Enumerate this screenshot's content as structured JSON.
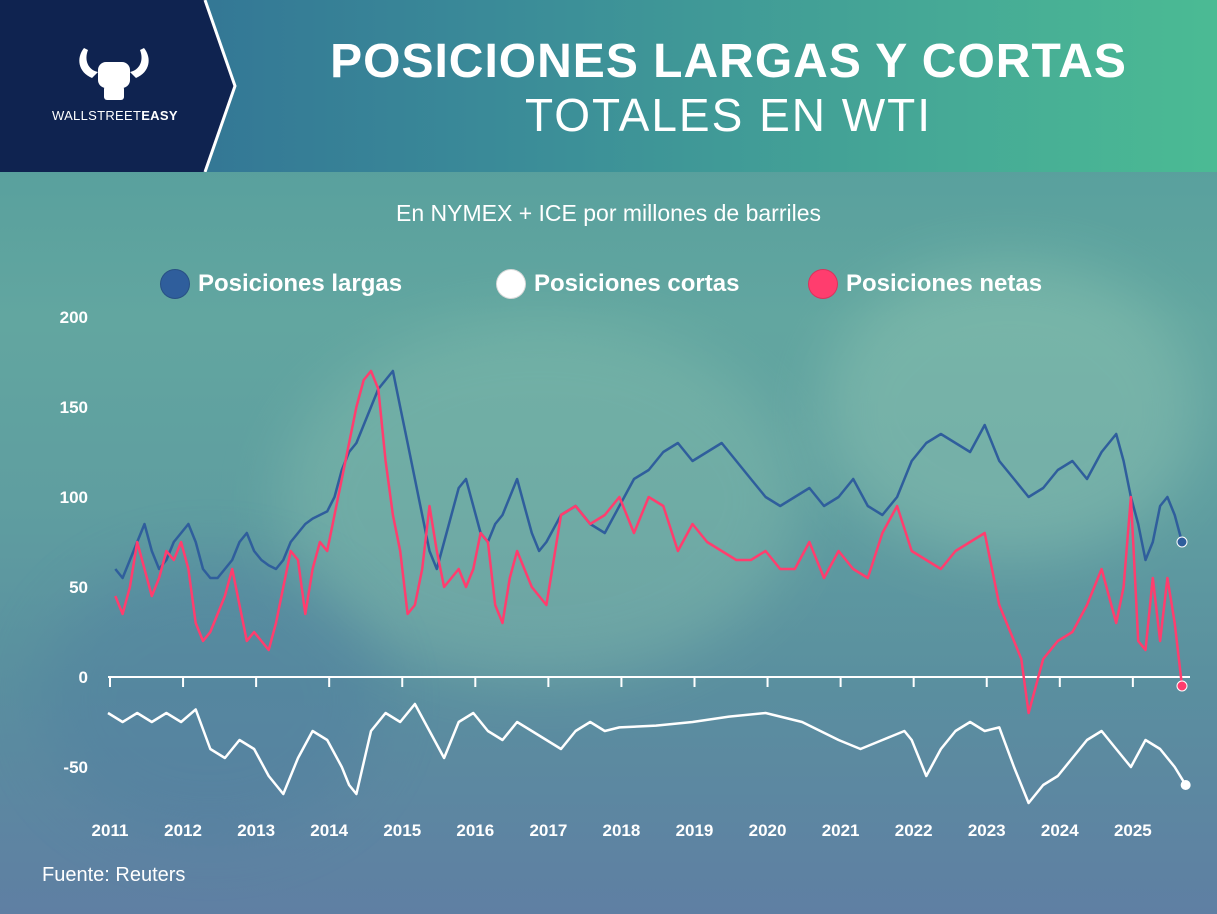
{
  "brand": {
    "name_regular": "WALLSTREET",
    "name_bold": "EASY"
  },
  "title_line1": "POSICIONES LARGAS Y CORTAS",
  "title_line2": "TOTALES EN WTI",
  "subtitle": "En NYMEX + ICE por millones de barriles",
  "source": "Fuente: Reuters",
  "colors": {
    "long": "#2f5e9c",
    "short": "#ffffff",
    "net": "#ff3d6e"
  },
  "chart_data": {
    "type": "line",
    "title": "POSICIONES LARGAS Y CORTAS TOTALES EN WTI",
    "subtitle": "En NYMEX + ICE por millones de barriles",
    "x_ticks": [
      "2011",
      "2012",
      "2013",
      "2014",
      "2015",
      "2016",
      "2017",
      "2018",
      "2019",
      "2020",
      "2021",
      "2022",
      "2023",
      "2024",
      "2025"
    ],
    "y_ticks": [
      200,
      150,
      100,
      50,
      0,
      -50
    ],
    "ylim": [
      -70,
      200
    ],
    "xlim": [
      2011.0,
      2025.8
    ],
    "legend_position": "top",
    "grid": false,
    "series": [
      {
        "name": "Posiciones largas",
        "color": "#2f5e9c",
        "x": [
          2011.1,
          2011.2,
          2011.3,
          2011.4,
          2011.5,
          2011.6,
          2011.7,
          2011.8,
          2011.9,
          2012.0,
          2012.1,
          2012.2,
          2012.3,
          2012.4,
          2012.5,
          2012.6,
          2012.7,
          2012.8,
          2012.9,
          2013.0,
          2013.1,
          2013.2,
          2013.3,
          2013.4,
          2013.5,
          2013.6,
          2013.7,
          2013.8,
          2013.9,
          2014.0,
          2014.1,
          2014.2,
          2014.3,
          2014.4,
          2014.5,
          2014.6,
          2014.7,
          2014.8,
          2014.9,
          2015.0,
          2015.1,
          2015.2,
          2015.3,
          2015.4,
          2015.5,
          2015.6,
          2015.7,
          2015.8,
          2015.9,
          2016.0,
          2016.1,
          2016.2,
          2016.3,
          2016.4,
          2016.5,
          2016.6,
          2016.7,
          2016.8,
          2016.9,
          2017.0,
          2017.2,
          2017.4,
          2017.6,
          2017.8,
          2018.0,
          2018.2,
          2018.4,
          2018.6,
          2018.8,
          2019.0,
          2019.2,
          2019.4,
          2019.6,
          2019.8,
          2020.0,
          2020.2,
          2020.4,
          2020.6,
          2020.8,
          2021.0,
          2021.2,
          2021.4,
          2021.6,
          2021.8,
          2022.0,
          2022.2,
          2022.4,
          2022.6,
          2022.8,
          2023.0,
          2023.2,
          2023.4,
          2023.6,
          2023.8,
          2024.0,
          2024.2,
          2024.4,
          2024.6,
          2024.8,
          2024.9,
          2025.0,
          2025.1,
          2025.2,
          2025.3,
          2025.4,
          2025.5,
          2025.6,
          2025.7
        ],
        "values": [
          60,
          55,
          65,
          75,
          85,
          70,
          60,
          65,
          75,
          80,
          85,
          75,
          60,
          55,
          55,
          60,
          65,
          75,
          80,
          70,
          65,
          62,
          60,
          65,
          75,
          80,
          85,
          88,
          90,
          92,
          100,
          115,
          125,
          130,
          140,
          150,
          160,
          165,
          170,
          150,
          130,
          110,
          90,
          70,
          60,
          75,
          90,
          105,
          110,
          95,
          80,
          75,
          85,
          90,
          100,
          110,
          95,
          80,
          70,
          75,
          90,
          95,
          85,
          80,
          95,
          110,
          115,
          125,
          130,
          120,
          125,
          130,
          120,
          110,
          100,
          95,
          100,
          105,
          95,
          100,
          110,
          95,
          90,
          100,
          120,
          130,
          135,
          130,
          125,
          140,
          120,
          110,
          100,
          105,
          115,
          120,
          110,
          125,
          135,
          120,
          100,
          85,
          65,
          75,
          95,
          100,
          90,
          75
        ]
      },
      {
        "name": "Posiciones cortas",
        "color": "#ffffff",
        "x": [
          2011.0,
          2011.2,
          2011.4,
          2011.6,
          2011.8,
          2012.0,
          2012.2,
          2012.4,
          2012.6,
          2012.8,
          2013.0,
          2013.2,
          2013.4,
          2013.6,
          2013.8,
          2014.0,
          2014.2,
          2014.3,
          2014.4,
          2014.6,
          2014.8,
          2015.0,
          2015.2,
          2015.4,
          2015.6,
          2015.8,
          2016.0,
          2016.2,
          2016.4,
          2016.6,
          2016.8,
          2017.0,
          2017.2,
          2017.4,
          2017.6,
          2017.8,
          2018.0,
          2018.5,
          2019.0,
          2019.5,
          2020.0,
          2020.5,
          2021.0,
          2021.3,
          2021.6,
          2021.9,
          2022.0,
          2022.2,
          2022.4,
          2022.6,
          2022.8,
          2023.0,
          2023.2,
          2023.4,
          2023.6,
          2023.8,
          2024.0,
          2024.2,
          2024.4,
          2024.6,
          2024.8,
          2025.0,
          2025.2,
          2025.4,
          2025.6,
          2025.75
        ],
        "values": [
          -20,
          -25,
          -20,
          -25,
          -20,
          -25,
          -18,
          -40,
          -45,
          -35,
          -40,
          -55,
          -65,
          -45,
          -30,
          -35,
          -50,
          -60,
          -65,
          -30,
          -20,
          -25,
          -15,
          -30,
          -45,
          -25,
          -20,
          -30,
          -35,
          -25,
          -30,
          -35,
          -40,
          -30,
          -25,
          -30,
          -28,
          -27,
          -25,
          -22,
          -20,
          -25,
          -35,
          -40,
          -35,
          -30,
          -35,
          -55,
          -40,
          -30,
          -25,
          -30,
          -28,
          -50,
          -70,
          -60,
          -55,
          -45,
          -35,
          -30,
          -40,
          -50,
          -35,
          -40,
          -50,
          -60
        ]
      },
      {
        "name": "Posiciones netas",
        "color": "#ff3d6e",
        "x": [
          2011.1,
          2011.2,
          2011.3,
          2011.4,
          2011.5,
          2011.6,
          2011.7,
          2011.8,
          2011.9,
          2012.0,
          2012.1,
          2012.2,
          2012.3,
          2012.4,
          2012.5,
          2012.6,
          2012.7,
          2012.8,
          2012.9,
          2013.0,
          2013.1,
          2013.2,
          2013.3,
          2013.4,
          2013.5,
          2013.6,
          2013.7,
          2013.8,
          2013.9,
          2014.0,
          2014.1,
          2014.2,
          2014.3,
          2014.4,
          2014.5,
          2014.6,
          2014.7,
          2014.8,
          2014.9,
          2015.0,
          2015.1,
          2015.2,
          2015.3,
          2015.4,
          2015.5,
          2015.6,
          2015.7,
          2015.8,
          2015.9,
          2016.0,
          2016.1,
          2016.2,
          2016.3,
          2016.4,
          2016.5,
          2016.6,
          2016.7,
          2016.8,
          2016.9,
          2017.0,
          2017.2,
          2017.4,
          2017.6,
          2017.8,
          2018.0,
          2018.2,
          2018.4,
          2018.6,
          2018.8,
          2019.0,
          2019.2,
          2019.4,
          2019.6,
          2019.8,
          2020.0,
          2020.2,
          2020.4,
          2020.6,
          2020.8,
          2021.0,
          2021.2,
          2021.4,
          2021.6,
          2021.8,
          2022.0,
          2022.2,
          2022.4,
          2022.6,
          2022.8,
          2023.0,
          2023.2,
          2023.4,
          2023.5,
          2023.6,
          2023.8,
          2024.0,
          2024.2,
          2024.4,
          2024.6,
          2024.8,
          2024.9,
          2025.0,
          2025.1,
          2025.2,
          2025.3,
          2025.4,
          2025.5,
          2025.6,
          2025.7
        ],
        "values": [
          45,
          35,
          50,
          75,
          60,
          45,
          55,
          70,
          65,
          75,
          60,
          30,
          20,
          25,
          35,
          45,
          60,
          40,
          20,
          25,
          20,
          15,
          30,
          50,
          70,
          65,
          35,
          60,
          75,
          70,
          90,
          110,
          130,
          150,
          165,
          170,
          160,
          120,
          90,
          70,
          35,
          40,
          60,
          95,
          70,
          50,
          55,
          60,
          50,
          60,
          80,
          75,
          40,
          30,
          55,
          70,
          60,
          50,
          45,
          40,
          90,
          95,
          85,
          90,
          100,
          80,
          100,
          95,
          70,
          85,
          75,
          70,
          65,
          65,
          70,
          60,
          60,
          75,
          55,
          70,
          60,
          55,
          80,
          95,
          70,
          65,
          60,
          70,
          75,
          80,
          40,
          20,
          10,
          -20,
          10,
          20,
          25,
          40,
          60,
          30,
          50,
          100,
          20,
          15,
          55,
          20,
          55,
          30,
          -5
        ]
      }
    ]
  }
}
